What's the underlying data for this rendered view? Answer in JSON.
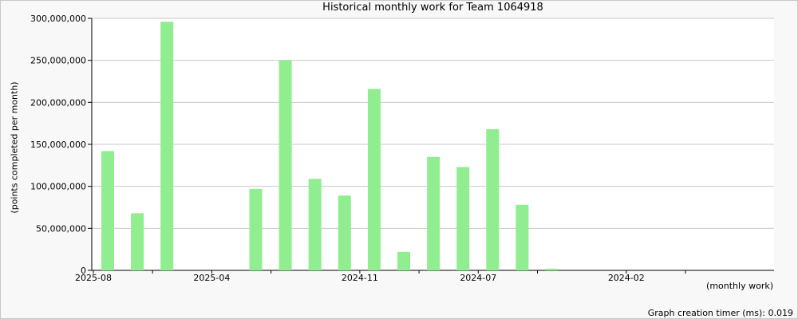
{
  "chart_data": {
    "type": "bar",
    "title": "Historical monthly work for Team 1064918",
    "xlabel": "(monthly work)",
    "ylabel": "(points completed per month)",
    "ylim": [
      0,
      300000000
    ],
    "yticks": [
      0,
      50000000,
      100000000,
      150000000,
      200000000,
      250000000,
      300000000
    ],
    "ytick_labels": [
      "0",
      "50,000,000",
      "100,000,000",
      "150,000,000",
      "200,000,000",
      "250,000,000",
      "300,000,000"
    ],
    "categories": [
      "2025-08",
      "2025-07",
      "2025-06",
      "2025-05",
      "2025-04",
      "2025-03",
      "2025-02",
      "2025-01",
      "2024-12",
      "2024-11",
      "2024-10",
      "2024-09",
      "2024-08",
      "2024-07",
      "2024-06",
      "2024-05",
      "2024-04",
      "2024-03",
      "2024-02",
      "2024-01",
      "2023-12",
      "2023-11",
      "2023-10"
    ],
    "values": [
      142000000,
      68000000,
      296000000,
      0,
      0,
      97000000,
      250000000,
      109000000,
      89000000,
      216000000,
      22000000,
      135000000,
      123000000,
      168000000,
      78000000,
      2000000,
      0,
      0,
      0,
      0,
      0,
      0,
      0
    ],
    "x_tick_labels": [
      {
        "index": 0,
        "label": "2025-08"
      },
      {
        "index": 4,
        "label": "2025-04"
      },
      {
        "index": 9,
        "label": "2024-11"
      },
      {
        "index": 13,
        "label": "2024-07"
      },
      {
        "index": 18,
        "label": "2024-02"
      }
    ],
    "bar_color": "#90ee90",
    "grid": true,
    "legend": "none"
  },
  "footer": {
    "timer_text": "Graph creation timer (ms): 0.019"
  }
}
